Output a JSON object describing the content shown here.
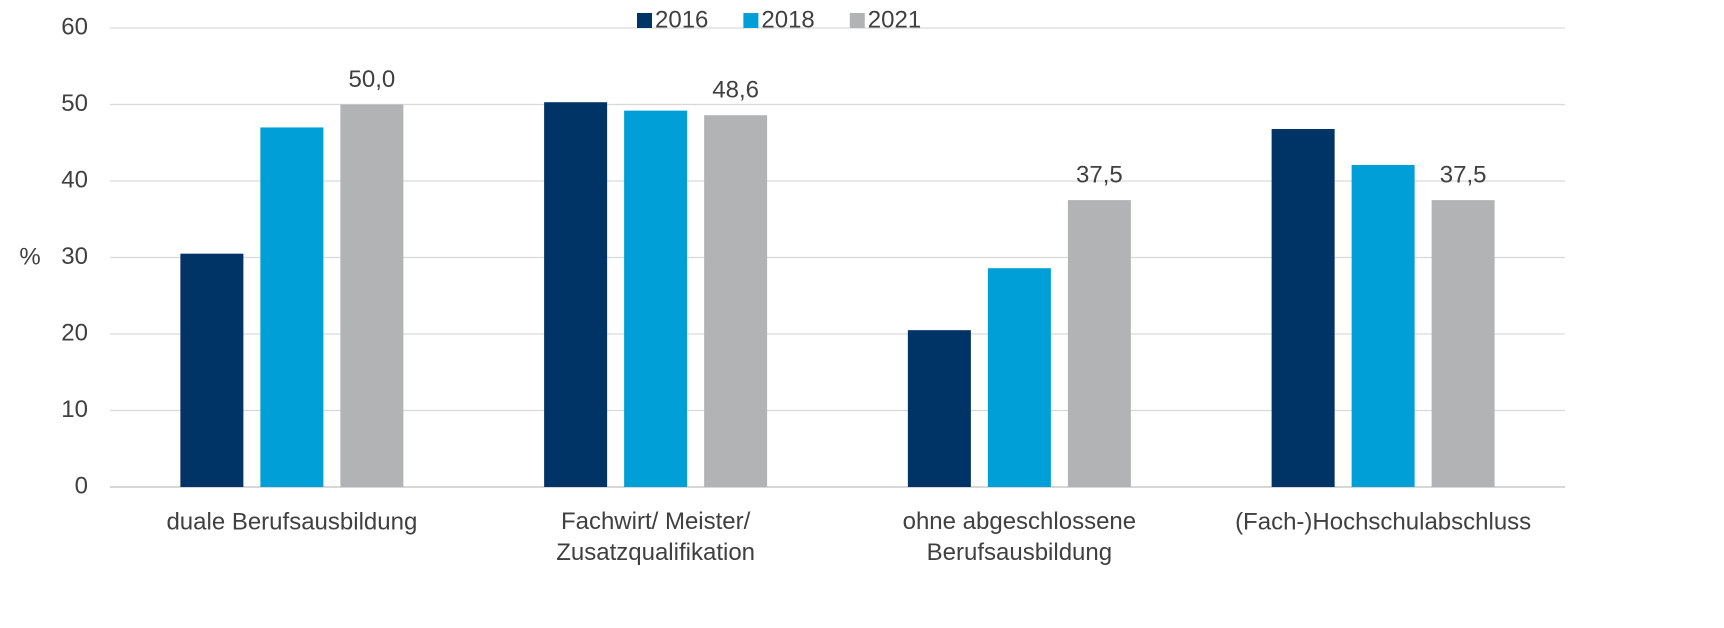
{
  "chart_data": {
    "type": "bar",
    "y_label": "%",
    "categories": [
      "duale Berufsausbildung",
      "Fachwirt/ Meister/\nZusatzqualifikation",
      "ohne abgeschlossene\nBerufsausbildung",
      "(Fach-)Hochschulabschluss"
    ],
    "series": [
      {
        "name": "2016",
        "color": "#003366",
        "values": [
          30.5,
          50.3,
          20.5,
          46.8
        ]
      },
      {
        "name": "2018",
        "color": "#009fd8",
        "values": [
          47.0,
          49.2,
          28.6,
          42.1
        ]
      },
      {
        "name": "2021",
        "color": "#b2b3b5",
        "values": [
          50.0,
          48.6,
          37.5,
          37.5
        ],
        "value_labels": [
          "50,0",
          "48,6",
          "37,5",
          "37,5"
        ]
      }
    ],
    "ylim": [
      0,
      60
    ],
    "yticks": [
      0,
      10,
      20,
      30,
      40,
      50,
      60
    ],
    "grid": true,
    "legend": "top"
  }
}
